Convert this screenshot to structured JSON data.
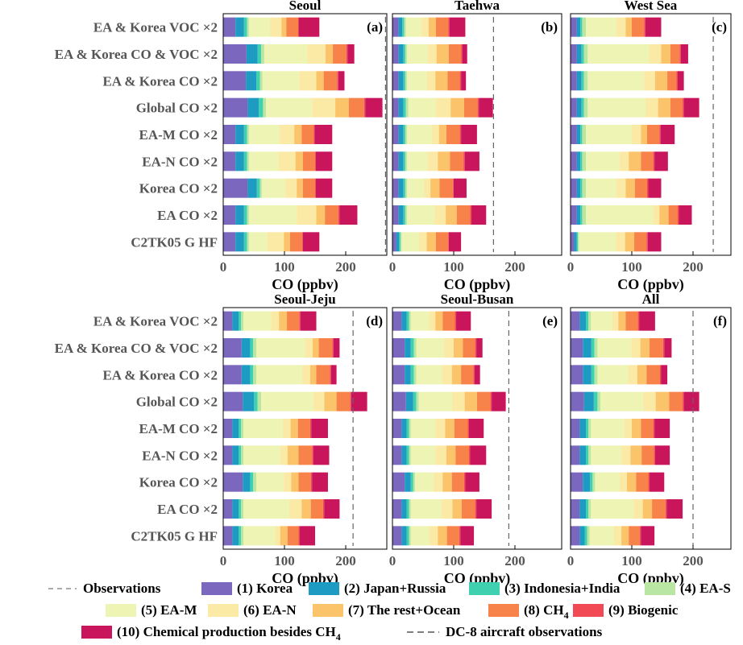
{
  "chart_data": {
    "type": "bar",
    "orientation": "horizontal",
    "stacked": true,
    "xlabel": "CO (ppbv)",
    "x_ticks": [
      0,
      100,
      200
    ],
    "xlim": [
      0,
      270
    ],
    "categories": [
      "EA & Korea VOC ×2",
      "EA & Korea CO & VOC ×2",
      "EA & Korea CO ×2",
      "Global CO ×2",
      "EA-M CO ×2",
      "EA-N CO ×2",
      "Korea CO ×2",
      "EA CO ×2",
      "C2TK05 G HF"
    ],
    "series": [
      {
        "name": "(1) Korea",
        "color": "#7b68be"
      },
      {
        "name": "(2) Japan+Russia",
        "color": "#1e9bc3"
      },
      {
        "name": "(3) Indonesia+India",
        "color": "#3fd0b0"
      },
      {
        "name": "(4) EA-S",
        "color": "#b9e6a3"
      },
      {
        "name": "(5) EA-M",
        "color": "#eef4b4"
      },
      {
        "name": "(6) EA-N",
        "color": "#fbe9a6"
      },
      {
        "name": "(7) The rest+Ocean",
        "color": "#fbc36a"
      },
      {
        "name": "(8) CH",
        "name_sub": "4",
        "color": "#f7834a"
      },
      {
        "name": "(9) Biogenic",
        "color": "#f24a55"
      },
      {
        "name": "(10) Chemical production besides CH",
        "name_sub": "4",
        "color": "#c8155c"
      }
    ],
    "legend": {
      "observations_label": "Observations",
      "dc8_label": "DC-8 aircraft observations"
    },
    "panels": [
      {
        "title": "Seoul",
        "label": "(a)",
        "observation": 265,
        "values": [
          [
            20,
            14,
            5,
            3,
            35,
            18,
            8,
            20,
            0,
            34
          ],
          [
            38,
            18,
            6,
            5,
            70,
            30,
            12,
            22,
            2,
            11
          ],
          [
            37,
            17,
            6,
            4,
            60,
            28,
            12,
            22,
            2,
            10
          ],
          [
            40,
            18,
            7,
            5,
            75,
            38,
            22,
            25,
            2,
            28
          ],
          [
            20,
            14,
            5,
            3,
            50,
            24,
            12,
            20,
            1,
            29
          ],
          [
            20,
            14,
            5,
            3,
            48,
            28,
            12,
            20,
            1,
            27
          ],
          [
            40,
            15,
            5,
            3,
            38,
            19,
            10,
            20,
            1,
            27
          ],
          [
            20,
            14,
            5,
            3,
            78,
            32,
            14,
            22,
            2,
            29
          ],
          [
            20,
            14,
            5,
            3,
            30,
            27,
            10,
            20,
            1,
            27
          ]
        ]
      },
      {
        "title": "Taehwa",
        "label": "(b)",
        "observation": 165,
        "values": [
          [
            10,
            6,
            3,
            3,
            25,
            12,
            12,
            20,
            2,
            26
          ],
          [
            10,
            8,
            3,
            3,
            34,
            14,
            20,
            20,
            2,
            8
          ],
          [
            10,
            8,
            3,
            3,
            32,
            14,
            20,
            20,
            2,
            8
          ],
          [
            10,
            8,
            4,
            4,
            45,
            24,
            22,
            22,
            2,
            23
          ],
          [
            10,
            8,
            3,
            3,
            40,
            12,
            12,
            22,
            2,
            26
          ],
          [
            10,
            8,
            3,
            3,
            34,
            16,
            20,
            22,
            2,
            24
          ],
          [
            10,
            8,
            3,
            3,
            28,
            10,
            15,
            22,
            1,
            21
          ],
          [
            10,
            8,
            3,
            3,
            45,
            18,
            18,
            22,
            2,
            24
          ],
          [
            6,
            5,
            2,
            2,
            28,
            13,
            15,
            20,
            1,
            20
          ]
        ]
      },
      {
        "title": "West Sea",
        "label": "(c)",
        "observation": 233,
        "values": [
          [
            10,
            6,
            3,
            6,
            50,
            15,
            10,
            20,
            2,
            26
          ],
          [
            10,
            8,
            4,
            6,
            100,
            20,
            15,
            15,
            2,
            12
          ],
          [
            10,
            8,
            4,
            6,
            92,
            18,
            20,
            15,
            2,
            10
          ],
          [
            10,
            8,
            4,
            6,
            95,
            20,
            20,
            20,
            2,
            25
          ],
          [
            10,
            6,
            3,
            6,
            75,
            15,
            10,
            20,
            2,
            23
          ],
          [
            10,
            6,
            3,
            6,
            55,
            15,
            20,
            20,
            2,
            22
          ],
          [
            10,
            6,
            3,
            6,
            50,
            15,
            15,
            20,
            2,
            21
          ],
          [
            10,
            6,
            3,
            6,
            110,
            10,
            15,
            15,
            2,
            21
          ],
          [
            6,
            4,
            2,
            2,
            60,
            15,
            15,
            20,
            2,
            22
          ]
        ]
      },
      {
        "title": "Seoul-Jeju",
        "label": "(d)",
        "observation": 212,
        "values": [
          [
            15,
            10,
            4,
            4,
            45,
            13,
            13,
            20,
            2,
            26
          ],
          [
            30,
            14,
            5,
            5,
            80,
            12,
            10,
            22,
            2,
            10
          ],
          [
            30,
            14,
            5,
            5,
            75,
            13,
            10,
            22,
            2,
            9
          ],
          [
            32,
            18,
            6,
            6,
            85,
            18,
            20,
            22,
            2,
            26
          ],
          [
            15,
            10,
            4,
            4,
            65,
            12,
            12,
            20,
            2,
            27
          ],
          [
            15,
            10,
            4,
            4,
            60,
            12,
            18,
            22,
            2,
            26
          ],
          [
            32,
            12,
            5,
            5,
            45,
            12,
            12,
            20,
            2,
            26
          ],
          [
            15,
            10,
            4,
            4,
            75,
            20,
            15,
            20,
            2,
            25
          ],
          [
            15,
            10,
            4,
            4,
            52,
            8,
            12,
            18,
            2,
            25
          ]
        ]
      },
      {
        "title": "Seoul-Busan",
        "label": "(e)",
        "observation": 190,
        "values": [
          [
            15,
            8,
            4,
            3,
            30,
            10,
            12,
            20,
            2,
            24
          ],
          [
            20,
            10,
            5,
            4,
            45,
            16,
            15,
            20,
            2,
            10
          ],
          [
            20,
            10,
            5,
            4,
            42,
            16,
            15,
            20,
            2,
            9
          ],
          [
            22,
            12,
            5,
            4,
            55,
            20,
            20,
            22,
            2,
            23
          ],
          [
            15,
            8,
            4,
            3,
            40,
            16,
            15,
            22,
            2,
            24
          ],
          [
            15,
            8,
            4,
            3,
            40,
            18,
            15,
            22,
            2,
            26
          ],
          [
            20,
            10,
            4,
            3,
            30,
            15,
            15,
            20,
            2,
            23
          ],
          [
            15,
            8,
            4,
            3,
            50,
            18,
            15,
            22,
            2,
            25
          ],
          [
            15,
            8,
            4,
            3,
            30,
            14,
            15,
            20,
            2,
            22
          ]
        ]
      },
      {
        "title": "All",
        "label": "(f)",
        "observation": 200,
        "values": [
          [
            15,
            10,
            4,
            4,
            35,
            10,
            12,
            20,
            2,
            26
          ],
          [
            20,
            14,
            5,
            5,
            55,
            15,
            15,
            22,
            2,
            12
          ],
          [
            20,
            14,
            5,
            5,
            50,
            15,
            15,
            22,
            2,
            10
          ],
          [
            22,
            16,
            6,
            5,
            70,
            20,
            22,
            22,
            2,
            25
          ],
          [
            15,
            10,
            4,
            4,
            55,
            12,
            15,
            20,
            2,
            25
          ],
          [
            15,
            10,
            4,
            4,
            50,
            15,
            18,
            20,
            2,
            24
          ],
          [
            20,
            12,
            4,
            4,
            40,
            12,
            15,
            20,
            2,
            24
          ],
          [
            15,
            10,
            4,
            4,
            70,
            15,
            15,
            22,
            2,
            26
          ],
          [
            15,
            8,
            4,
            4,
            40,
            12,
            12,
            18,
            2,
            22
          ]
        ]
      }
    ]
  }
}
